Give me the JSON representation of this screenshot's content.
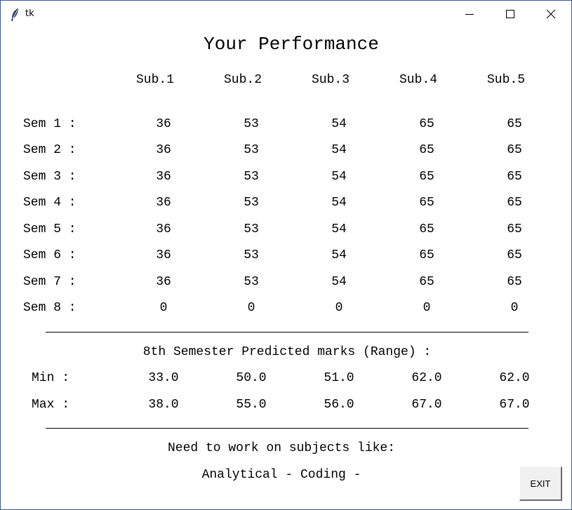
{
  "window": {
    "title": "tk",
    "icon": "feather-icon"
  },
  "heading": "Your Performance",
  "subjects": [
    "Sub.1",
    "Sub.2",
    "Sub.3",
    "Sub.4",
    "Sub.5"
  ],
  "semesters": [
    {
      "label": "Sem 1 :",
      "marks": [
        "36",
        "53",
        "54",
        "65",
        "65"
      ]
    },
    {
      "label": "Sem 2 :",
      "marks": [
        "36",
        "53",
        "54",
        "65",
        "65"
      ]
    },
    {
      "label": "Sem 3 :",
      "marks": [
        "36",
        "53",
        "54",
        "65",
        "65"
      ]
    },
    {
      "label": "Sem 4 :",
      "marks": [
        "36",
        "53",
        "54",
        "65",
        "65"
      ]
    },
    {
      "label": "Sem 5 :",
      "marks": [
        "36",
        "53",
        "54",
        "65",
        "65"
      ]
    },
    {
      "label": "Sem 6 :",
      "marks": [
        "36",
        "53",
        "54",
        "65",
        "65"
      ]
    },
    {
      "label": "Sem 7 :",
      "marks": [
        "36",
        "53",
        "54",
        "65",
        "65"
      ]
    },
    {
      "label": "Sem 8 :",
      "marks": [
        "0",
        "0",
        "0",
        "0",
        "0"
      ]
    }
  ],
  "prediction": {
    "title": "8th Semester Predicted marks (Range) :",
    "min": {
      "label": "Min :",
      "values": [
        "33.0",
        "50.0",
        "51.0",
        "62.0",
        "62.0"
      ]
    },
    "max": {
      "label": "Max :",
      "values": [
        "38.0",
        "55.0",
        "56.0",
        "67.0",
        "67.0"
      ]
    }
  },
  "needs": {
    "title": "Need to work on subjects like:",
    "subjects": "Analytical - Coding -"
  },
  "exit_button": "EXIT"
}
